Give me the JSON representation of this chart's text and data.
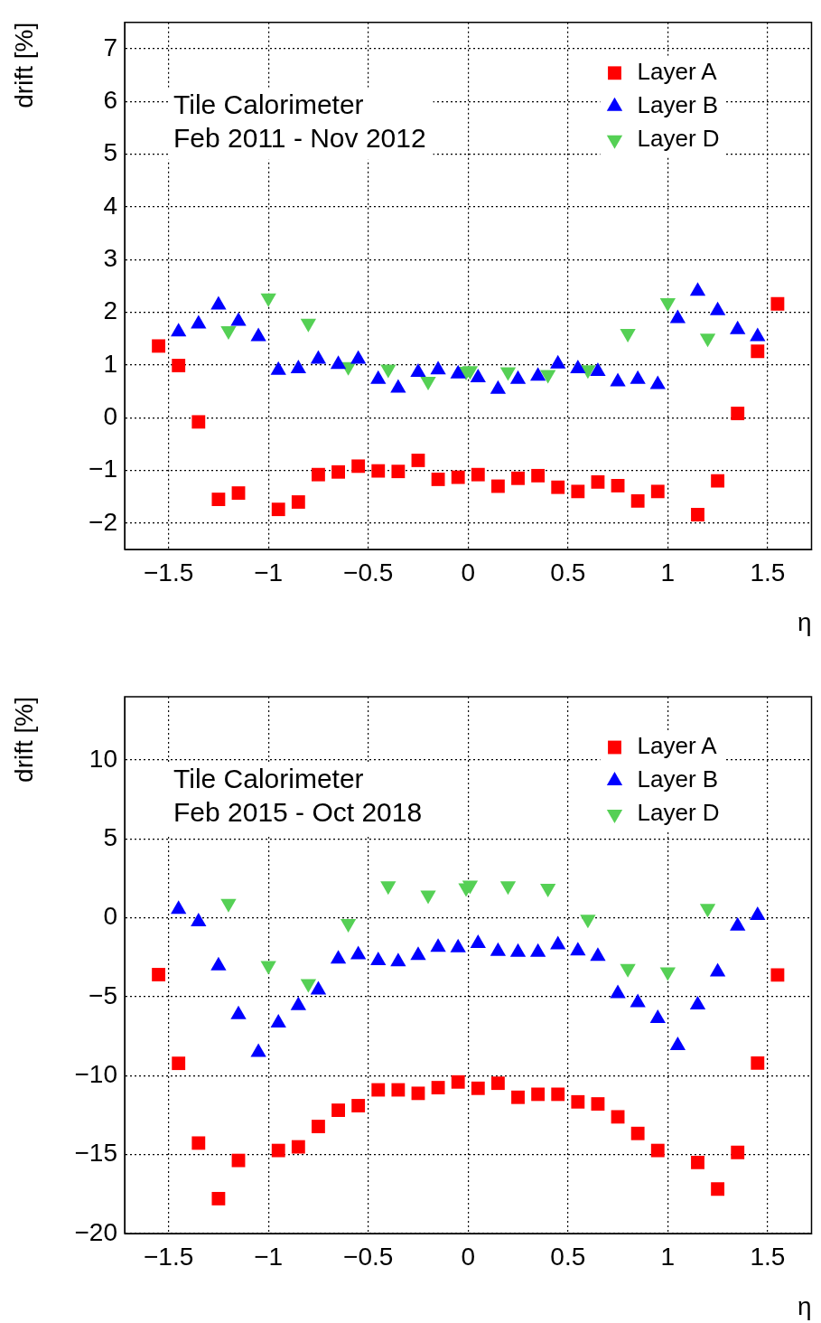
{
  "chart_data": [
    {
      "type": "scatter",
      "xlabel": "η",
      "ylabel": "drift [%]",
      "annotations": [
        "Tile Calorimeter",
        "Feb 2011 - Nov 2012"
      ],
      "xlim": [
        -1.72,
        1.72
      ],
      "xticks": [
        {
          "value": -1.5,
          "label": "−1.5"
        },
        {
          "value": -1,
          "label": "−1"
        },
        {
          "value": -0.5,
          "label": "−0.5"
        },
        0,
        0.5,
        1,
        1.5
      ],
      "ylim": [
        -2.5,
        7.5
      ],
      "yticks": [
        {
          "value": -2,
          "label": "−2"
        },
        {
          "value": -1,
          "label": "−1"
        },
        0,
        1,
        2,
        3,
        4,
        5,
        6,
        7
      ],
      "grid": true,
      "legend": "top right",
      "series": [
        {
          "name": "Layer A",
          "color": "#ff0000",
          "marker": "square",
          "x": [
            -1.55,
            -1.45,
            -1.35,
            -1.25,
            -1.15,
            -0.95,
            -0.85,
            -0.75,
            -0.65,
            -0.55,
            -0.45,
            -0.35,
            -0.25,
            -0.15,
            -0.05,
            0.05,
            0.15,
            0.25,
            0.35,
            0.45,
            0.55,
            0.65,
            0.75,
            0.85,
            0.95,
            1.15,
            1.25,
            1.35,
            1.45,
            1.55
          ],
          "values": [
            1.36,
            0.99,
            -0.08,
            -1.55,
            -1.43,
            -1.74,
            -1.6,
            -1.08,
            -1.03,
            -0.92,
            -1.01,
            -1.02,
            -0.81,
            -1.17,
            -1.13,
            -1.08,
            -1.3,
            -1.15,
            -1.1,
            -1.32,
            -1.4,
            -1.22,
            -1.29,
            -1.58,
            -1.4,
            -1.84,
            -1.2,
            0.08,
            1.26,
            2.16
          ]
        },
        {
          "name": "Layer B",
          "color": "#0000ff",
          "marker": "triangle",
          "x": [
            -1.45,
            -1.35,
            -1.25,
            -1.15,
            -1.05,
            -0.95,
            -0.85,
            -0.75,
            -0.65,
            -0.55,
            -0.45,
            -0.35,
            -0.25,
            -0.15,
            -0.05,
            0.05,
            0.15,
            0.25,
            0.35,
            0.45,
            0.55,
            0.65,
            0.75,
            0.85,
            0.95,
            1.05,
            1.15,
            1.25,
            1.35,
            1.45
          ],
          "values": [
            1.63,
            1.78,
            2.14,
            1.83,
            1.54,
            0.9,
            0.93,
            1.11,
            1.01,
            1.11,
            0.73,
            0.56,
            0.86,
            0.91,
            0.83,
            0.76,
            0.54,
            0.73,
            0.79,
            1.02,
            0.93,
            0.88,
            0.68,
            0.73,
            0.63,
            1.88,
            2.4,
            2.03,
            1.67,
            1.54
          ]
        },
        {
          "name": "Layer D",
          "color": "#55d055",
          "marker": "triangle-down",
          "x": [
            -1.2,
            -1,
            -0.8,
            -0.6,
            -0.4,
            -0.2,
            -0.01,
            0.01,
            0.2,
            0.4,
            0.6,
            0.8,
            1,
            1.2
          ],
          "values": [
            1.65,
            2.27,
            1.79,
            0.97,
            0.92,
            0.69,
            0.88,
            0.89,
            0.87,
            0.82,
            0.91,
            1.6,
            2.18,
            1.51
          ]
        }
      ]
    },
    {
      "type": "scatter",
      "xlabel": "η",
      "ylabel": "drift [%]",
      "annotations": [
        "Tile Calorimeter",
        "Feb 2015 - Oct 2018"
      ],
      "xlim": [
        -1.72,
        1.72
      ],
      "xticks": [
        {
          "value": -1.5,
          "label": "−1.5"
        },
        {
          "value": -1,
          "label": "−1"
        },
        {
          "value": -0.5,
          "label": "−0.5"
        },
        0,
        0.5,
        1,
        1.5
      ],
      "ylim": [
        -20,
        14
      ],
      "yticks": [
        {
          "value": -20,
          "label": "−20"
        },
        {
          "value": -15,
          "label": "−15"
        },
        {
          "value": -10,
          "label": "−10"
        },
        {
          "value": -5,
          "label": "−5"
        },
        0,
        5,
        10
      ],
      "grid": true,
      "legend": "top right",
      "series": [
        {
          "name": "Layer A",
          "color": "#ff0000",
          "marker": "square",
          "x": [
            -1.55,
            -1.45,
            -1.35,
            -1.25,
            -1.15,
            -0.95,
            -0.85,
            -0.75,
            -0.65,
            -0.55,
            -0.45,
            -0.35,
            -0.25,
            -0.15,
            -0.05,
            0.05,
            0.15,
            0.25,
            0.35,
            0.45,
            0.55,
            0.65,
            0.75,
            0.85,
            0.95,
            1.15,
            1.25,
            1.35,
            1.45,
            1.55
          ],
          "values": [
            -3.6,
            -9.22,
            -14.27,
            -17.79,
            -15.37,
            -14.74,
            -14.51,
            -13.22,
            -12.19,
            -11.9,
            -10.9,
            -10.9,
            -11.12,
            -10.76,
            -10.4,
            -10.8,
            -10.48,
            -11.37,
            -11.18,
            -11.18,
            -11.66,
            -11.79,
            -12.61,
            -13.66,
            -14.74,
            -15.5,
            -17.18,
            -14.86,
            -9.2,
            -3.62
          ]
        },
        {
          "name": "Layer B",
          "color": "#0000ff",
          "marker": "triangle",
          "x": [
            -1.45,
            -1.35,
            -1.25,
            -1.15,
            -1.05,
            -0.95,
            -0.85,
            -0.75,
            -0.65,
            -0.55,
            -0.45,
            -0.35,
            -0.25,
            -0.15,
            -0.05,
            0.05,
            0.15,
            0.25,
            0.35,
            0.45,
            0.55,
            0.65,
            0.75,
            0.85,
            0.95,
            1.05,
            1.15,
            1.25,
            1.35,
            1.45
          ],
          "values": [
            0.53,
            -0.25,
            -3.05,
            -6.13,
            -8.53,
            -6.67,
            -5.56,
            -4.57,
            -2.61,
            -2.34,
            -2.72,
            -2.78,
            -2.38,
            -1.87,
            -1.9,
            -1.62,
            -2.13,
            -2.19,
            -2.19,
            -1.71,
            -2.1,
            -2.44,
            -4.8,
            -5.37,
            -6.38,
            -8.1,
            -5.52,
            -3.43,
            -0.53,
            0.15
          ]
        },
        {
          "name": "Layer D",
          "color": "#55d055",
          "marker": "triangle-down",
          "x": [
            -1.2,
            -1,
            -0.8,
            -0.6,
            -0.4,
            -0.2,
            -0.01,
            0.01,
            0.2,
            0.4,
            0.6,
            0.8,
            1,
            1.2
          ],
          "values": [
            0.91,
            -3.03,
            -4.17,
            -0.36,
            2.02,
            1.43,
            1.9,
            2.06,
            2.02,
            1.87,
            -0.1,
            -3.22,
            -3.43,
            0.59
          ]
        }
      ]
    }
  ]
}
